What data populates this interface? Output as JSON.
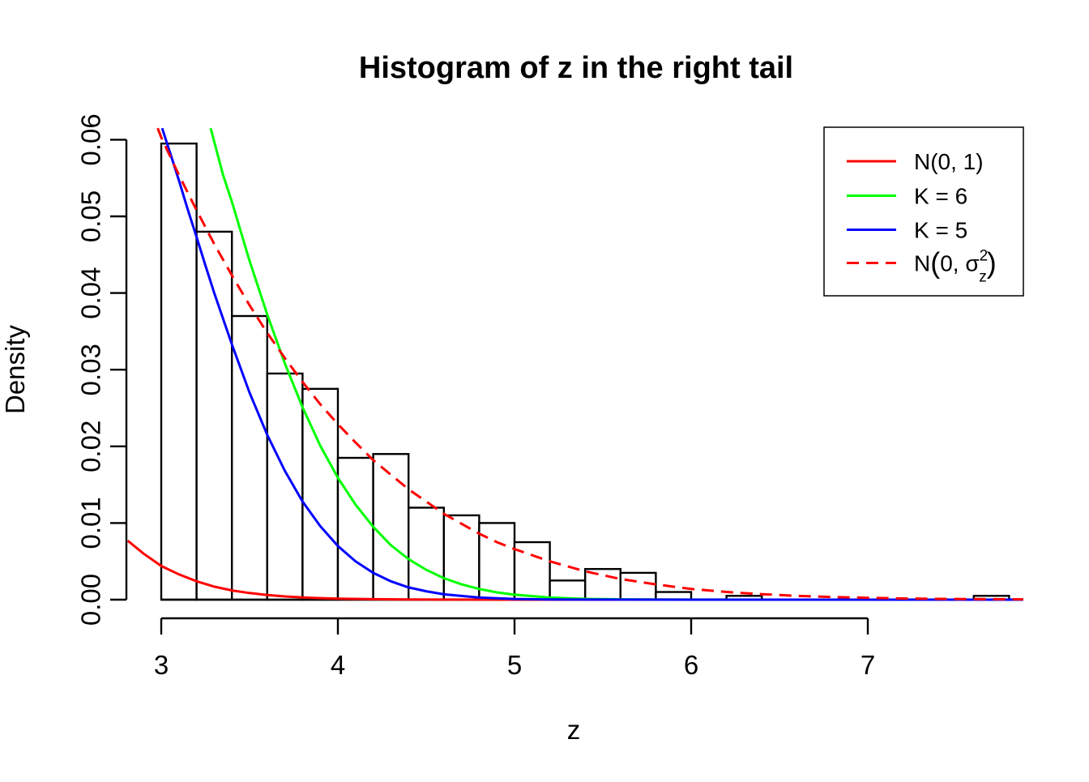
{
  "title": "Histogram of z in the right tail",
  "x_axis": {
    "label": "z",
    "tick_labels": [
      "3",
      "4",
      "5",
      "6",
      "7"
    ],
    "tick_values": [
      3,
      4,
      5,
      6,
      7
    ]
  },
  "y_axis": {
    "label": "Density",
    "tick_labels": [
      "0.00",
      "0.01",
      "0.02",
      "0.03",
      "0.04",
      "0.05",
      "0.06"
    ],
    "tick_values": [
      0,
      0.01,
      0.02,
      0.03,
      0.04,
      0.05,
      0.06
    ]
  },
  "colors": {
    "n01": "#FF0000",
    "k6": "#00FF00",
    "k5": "#0000FF",
    "n0sigma2": "#FF0000",
    "bar_stroke": "#000000",
    "bar_fill": "#FFFFFF",
    "axis": "#000000"
  },
  "legend": {
    "entries": [
      {
        "name": "n01",
        "label": "N(0, 1)",
        "color": "#FF0000",
        "dashed": false,
        "math": false
      },
      {
        "name": "k6",
        "label": "K = 6",
        "color": "#00FF00",
        "dashed": false,
        "math": false
      },
      {
        "name": "k5",
        "label": "K = 5",
        "color": "#0000FF",
        "dashed": false,
        "math": false
      },
      {
        "name": "n0sigma2",
        "label": "N(0, σ²z)",
        "color": "#FF0000",
        "dashed": true,
        "math": true,
        "parts": {
          "prefix": "N",
          "open": "(",
          "body": "0, σ",
          "sup": "2",
          "sub": "z",
          "close": ")"
        }
      }
    ]
  },
  "chart_data": {
    "type": "bar",
    "subtype": "histogram-with-density-curves",
    "title": "Histogram of z in the right tail",
    "xlabel": "z",
    "ylabel": "Density",
    "xlim": [
      2.81,
      7.88
    ],
    "ylim": [
      0,
      0.0615
    ],
    "grid": "off",
    "legend_position": "top-right",
    "bins": {
      "start": 3.0,
      "width": 0.2,
      "edges": [
        3.0,
        3.2,
        3.4,
        3.6,
        3.8,
        4.0,
        4.2,
        4.4,
        4.6,
        4.8,
        5.0,
        5.2,
        5.4,
        5.6,
        5.8,
        6.0,
        6.2,
        6.4,
        6.6,
        6.8,
        7.0,
        7.2,
        7.4,
        7.6,
        7.8
      ],
      "densities": [
        0.0595,
        0.048,
        0.037,
        0.0295,
        0.0275,
        0.0185,
        0.019,
        0.012,
        0.011,
        0.01,
        0.0075,
        0.0025,
        0.004,
        0.0035,
        0.001,
        0,
        0.0005,
        0,
        0,
        0,
        0,
        0,
        0,
        0.0005
      ]
    },
    "series": [
      {
        "name": "N(0, 1)",
        "style": "solid",
        "color": "#FF0000",
        "points": [
          [
            2.81,
            0.0077
          ],
          [
            2.9,
            0.006
          ],
          [
            3.0,
            0.0044
          ],
          [
            3.1,
            0.0033
          ],
          [
            3.2,
            0.0024
          ],
          [
            3.3,
            0.0017
          ],
          [
            3.4,
            0.0012
          ],
          [
            3.5,
            0.00087
          ],
          [
            3.6,
            0.00061
          ],
          [
            3.7,
            0.00042
          ],
          [
            3.8,
            0.00029
          ],
          [
            3.9,
            0.0002
          ],
          [
            4.0,
            0.00013
          ],
          [
            4.2,
            6e-05
          ],
          [
            4.4,
            2.5e-05
          ],
          [
            4.6,
            1e-05
          ],
          [
            5.0,
            2e-06
          ],
          [
            5.5,
            1e-06
          ],
          [
            6.0,
            0
          ],
          [
            7.88,
            0
          ]
        ]
      },
      {
        "name": "K = 6",
        "style": "solid",
        "color": "#00FF00",
        "points": [
          [
            3.28,
            0.0615
          ],
          [
            3.35,
            0.0554
          ],
          [
            3.4,
            0.0519
          ],
          [
            3.5,
            0.0442
          ],
          [
            3.6,
            0.0372
          ],
          [
            3.7,
            0.0308
          ],
          [
            3.8,
            0.0251
          ],
          [
            3.9,
            0.0201
          ],
          [
            4.0,
            0.0159
          ],
          [
            4.1,
            0.0124
          ],
          [
            4.2,
            0.0095
          ],
          [
            4.3,
            0.0071
          ],
          [
            4.4,
            0.0053
          ],
          [
            4.5,
            0.0039
          ],
          [
            4.6,
            0.0028
          ],
          [
            4.7,
            0.002
          ],
          [
            4.8,
            0.0014
          ],
          [
            4.9,
            0.00095
          ],
          [
            5.0,
            0.00064
          ],
          [
            5.2,
            0.00028
          ],
          [
            5.4,
            0.00011
          ],
          [
            5.6,
            4e-05
          ],
          [
            5.8,
            1.6e-05
          ],
          [
            6.0,
            6e-06
          ],
          [
            6.5,
            1e-06
          ],
          [
            7.88,
            0
          ]
        ]
      },
      {
        "name": "K = 5",
        "style": "solid",
        "color": "#0000FF",
        "points": [
          [
            3.005,
            0.0615
          ],
          [
            3.05,
            0.0583
          ],
          [
            3.1,
            0.0547
          ],
          [
            3.15,
            0.0509
          ],
          [
            3.2,
            0.0473
          ],
          [
            3.25,
            0.0436
          ],
          [
            3.3,
            0.04
          ],
          [
            3.4,
            0.0333
          ],
          [
            3.5,
            0.027
          ],
          [
            3.6,
            0.0215
          ],
          [
            3.7,
            0.0168
          ],
          [
            3.8,
            0.0128
          ],
          [
            3.9,
            0.0096
          ],
          [
            4.0,
            0.007
          ],
          [
            4.1,
            0.005
          ],
          [
            4.2,
            0.0035
          ],
          [
            4.3,
            0.0024
          ],
          [
            4.4,
            0.0016
          ],
          [
            4.5,
            0.0011
          ],
          [
            4.6,
            0.0007
          ],
          [
            4.8,
            0.00027
          ],
          [
            5.0,
            0.0001
          ],
          [
            5.2,
            3e-05
          ],
          [
            5.4,
            1e-05
          ],
          [
            6.0,
            2e-06
          ],
          [
            7.88,
            0
          ]
        ]
      },
      {
        "name": "N(0, σ²z)",
        "style": "dashed",
        "color": "#FF0000",
        "points": [
          [
            2.98,
            0.0615
          ],
          [
            3.0,
            0.0603
          ],
          [
            3.1,
            0.0554
          ],
          [
            3.2,
            0.0508
          ],
          [
            3.3,
            0.0464
          ],
          [
            3.4,
            0.0423
          ],
          [
            3.5,
            0.0384
          ],
          [
            3.6,
            0.0348
          ],
          [
            3.7,
            0.0315
          ],
          [
            3.8,
            0.0284
          ],
          [
            3.9,
            0.0255
          ],
          [
            4.0,
            0.0229
          ],
          [
            4.1,
            0.0205
          ],
          [
            4.2,
            0.0182
          ],
          [
            4.3,
            0.0163
          ],
          [
            4.4,
            0.0144
          ],
          [
            4.5,
            0.0128
          ],
          [
            4.6,
            0.0112
          ],
          [
            4.7,
            0.0099
          ],
          [
            4.8,
            0.0086
          ],
          [
            4.9,
            0.0075
          ],
          [
            5.0,
            0.0066
          ],
          [
            5.2,
            0.005
          ],
          [
            5.4,
            0.0037
          ],
          [
            5.6,
            0.0027
          ],
          [
            5.8,
            0.002
          ],
          [
            6.0,
            0.0014
          ],
          [
            6.2,
            0.001
          ],
          [
            6.4,
            0.00072
          ],
          [
            6.6,
            0.0005
          ],
          [
            6.8,
            0.00035
          ],
          [
            7.0,
            0.00024
          ],
          [
            7.2,
            0.00016
          ],
          [
            7.4,
            0.00011
          ],
          [
            7.6,
            7e-05
          ],
          [
            7.88,
            4e-05
          ]
        ]
      }
    ]
  }
}
